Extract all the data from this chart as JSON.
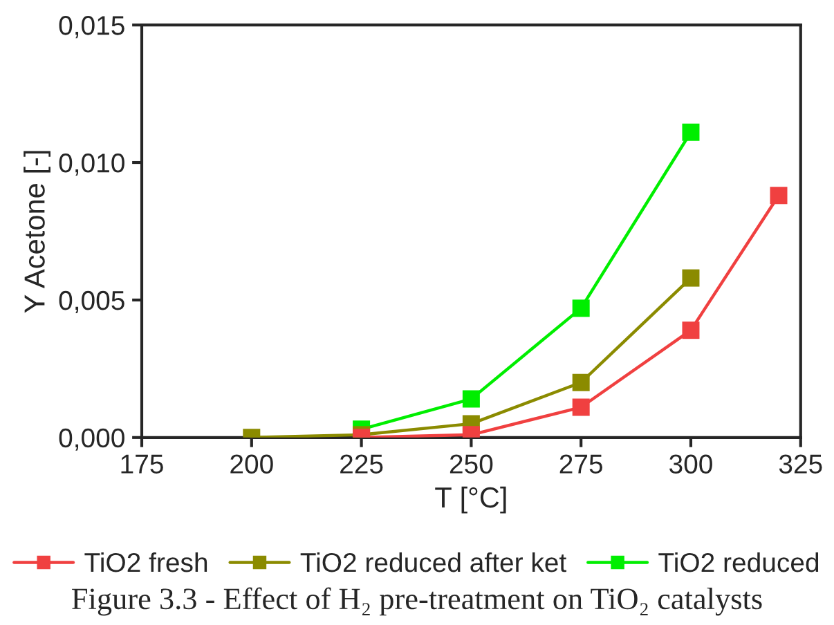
{
  "chart_data": {
    "type": "line",
    "xlabel": "T [°C]",
    "ylabel": "Y Acetone [-]",
    "series": [
      {
        "name": "TiO2 fresh",
        "color": "#f04040",
        "x": [
          225,
          250,
          275,
          300,
          320
        ],
        "values": [
          0.0,
          0.0001,
          0.0011,
          0.0039,
          0.0088
        ]
      },
      {
        "name": "TiO2 reduced after ket",
        "color": "#8b8b00",
        "x": [
          200,
          225,
          250,
          275,
          300
        ],
        "values": [
          0.0,
          0.0001,
          0.0005,
          0.002,
          0.0058
        ]
      },
      {
        "name": "TiO2 reduced",
        "color": "#00ee00",
        "x": [
          225,
          250,
          275,
          300
        ],
        "values": [
          0.0003,
          0.0014,
          0.0047,
          0.0111
        ]
      }
    ],
    "xlim": [
      175,
      325
    ],
    "xticks": [
      175,
      200,
      225,
      250,
      275,
      300,
      325
    ],
    "ylim": [
      0,
      0.015
    ],
    "yticks": [
      {
        "value": 0,
        "label": "0,000"
      },
      {
        "value": 0.005,
        "label": "0,005"
      },
      {
        "value": 0.01,
        "label": "0,010"
      },
      {
        "value": 0.015,
        "label": "0,015"
      }
    ],
    "marker": "square",
    "line_style": "solid",
    "grid": false,
    "legend": "bottom",
    "annotations": [
      "Figure 3.3 - Effect of H₂ pre-treatment on TiO₂ catalysts"
    ]
  }
}
